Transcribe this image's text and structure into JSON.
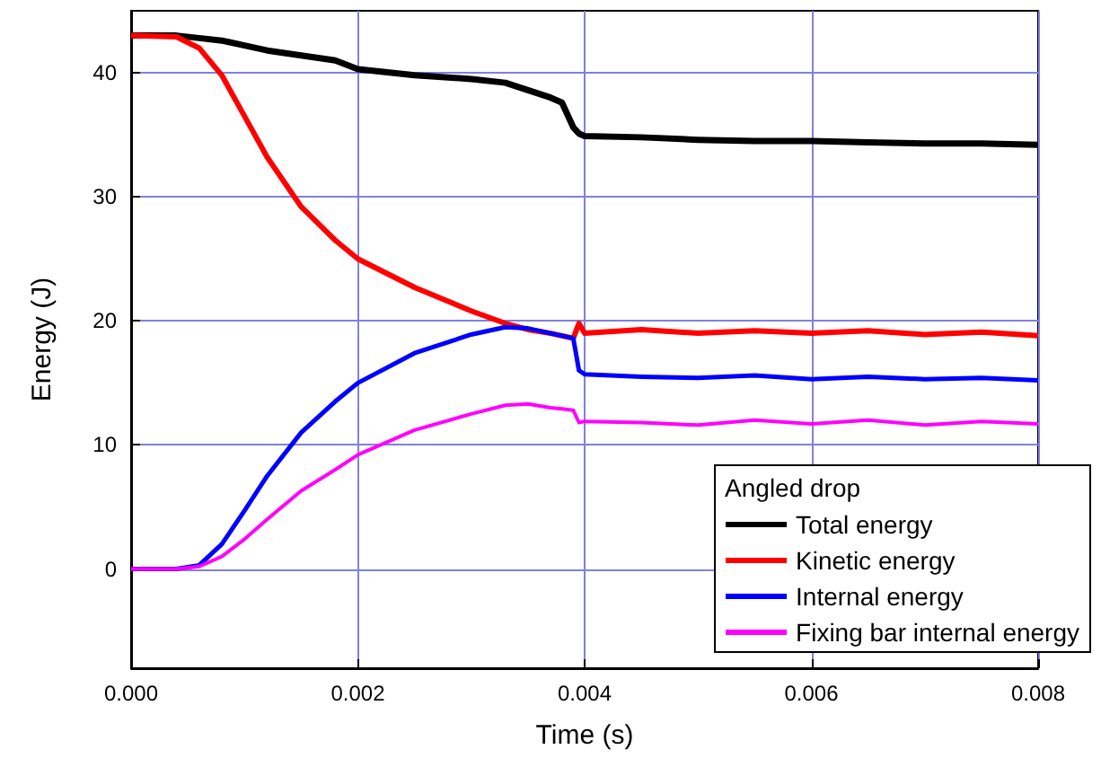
{
  "chart_data": {
    "type": "line",
    "xlabel": "Time (s)",
    "ylabel": "Energy (J)",
    "legend_title": "Angled drop",
    "legend": "bottom right",
    "grid": true,
    "marker": "none",
    "line_style": "solid",
    "xlim": [
      0,
      0.008
    ],
    "xticks": [
      {
        "value": 0,
        "label": "0.000"
      },
      {
        "value": 0.002,
        "label": "0.002"
      },
      {
        "value": 0.004,
        "label": "0.004"
      },
      {
        "value": 0.006,
        "label": "0.006"
      },
      {
        "value": 0.008,
        "label": "0.008"
      }
    ],
    "ylim": [
      -8,
      45
    ],
    "yticks": [
      0,
      10,
      20,
      30,
      40
    ],
    "x": [
      0,
      0.0004,
      0.0006,
      0.0008,
      0.001,
      0.0012,
      0.0015,
      0.0018,
      0.002,
      0.0025,
      0.003,
      0.0033,
      0.0035,
      0.0037,
      0.0038,
      0.0039,
      0.00395,
      0.004,
      0.0045,
      0.005,
      0.0055,
      0.006,
      0.0065,
      0.007,
      0.0075,
      0.008
    ],
    "series": [
      {
        "name": "Total energy",
        "color": "#000000",
        "values": [
          43,
          43,
          42.8,
          42.6,
          42.2,
          41.8,
          41.4,
          41,
          40.3,
          39.8,
          39.5,
          39.2,
          38.6,
          38,
          37.6,
          35.6,
          35.1,
          34.9,
          34.8,
          34.6,
          34.5,
          34.5,
          34.4,
          34.3,
          34.3,
          34.2
        ]
      },
      {
        "name": "Kinetic energy",
        "color": "#ff0000",
        "values": [
          43,
          42.9,
          42,
          39.8,
          36.5,
          33.2,
          29.2,
          26.5,
          25,
          22.7,
          20.8,
          19.8,
          19.3,
          19,
          18.8,
          18.6,
          19.8,
          19,
          19.3,
          19,
          19.2,
          19,
          19.2,
          18.9,
          19.1,
          18.8
        ]
      },
      {
        "name": "Internal energy",
        "color": "#0000ff",
        "values": [
          0,
          0,
          0.3,
          2,
          4.7,
          7.5,
          11,
          13.5,
          15,
          17.4,
          18.9,
          19.5,
          19.4,
          19,
          18.8,
          18.6,
          16,
          15.7,
          15.5,
          15.4,
          15.6,
          15.3,
          15.5,
          15.3,
          15.4,
          15.2
        ]
      },
      {
        "name": "Fixing bar internal energy",
        "color": "#ff00ff",
        "values": [
          0,
          0,
          0.2,
          1,
          2.4,
          4,
          6.3,
          8,
          9.2,
          11.2,
          12.5,
          13.2,
          13.3,
          13,
          12.9,
          12.8,
          11.8,
          11.9,
          11.8,
          11.6,
          12,
          11.7,
          12,
          11.6,
          11.9,
          11.7
        ]
      }
    ]
  }
}
